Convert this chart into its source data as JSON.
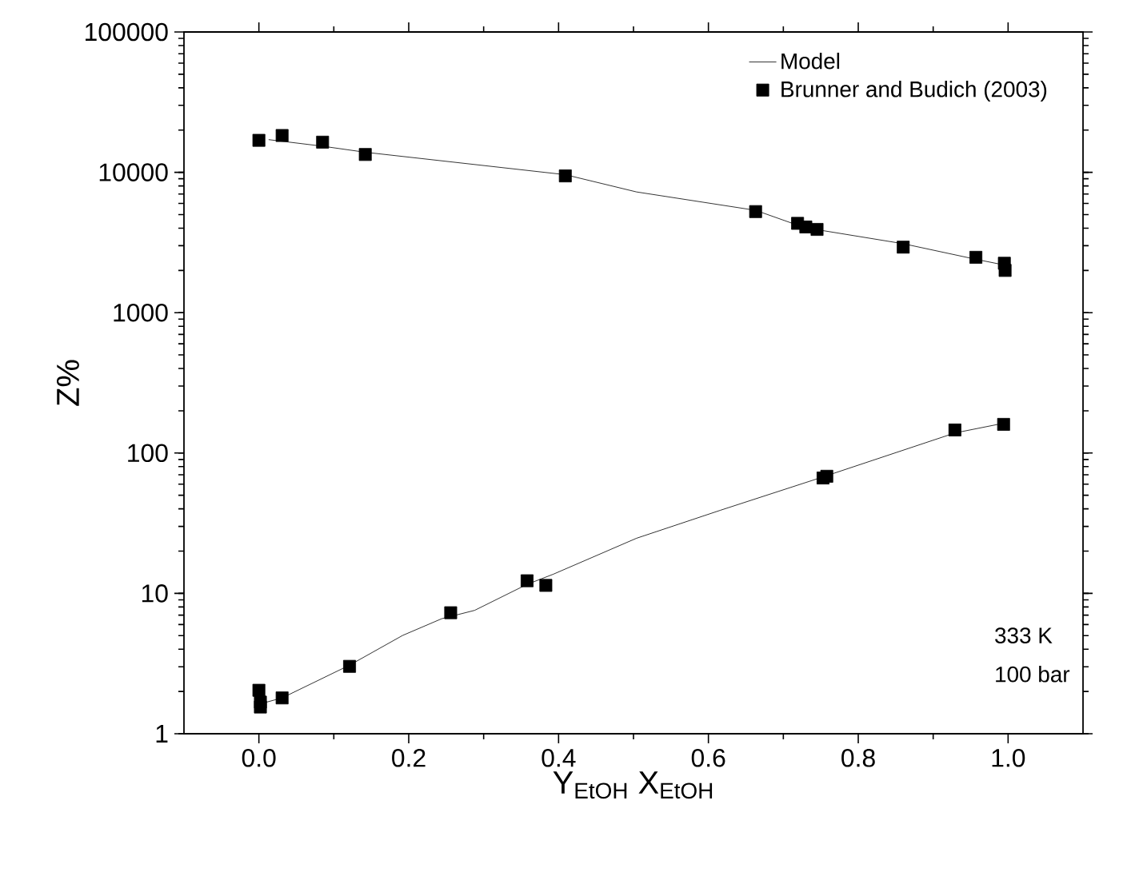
{
  "chart_data": {
    "type": "line",
    "xlabel": "Y$_{EtOH}$ X$_{EtOH}$",
    "ylabel": "Z%",
    "log": "y",
    "xlim": [
      -0.1,
      1.1
    ],
    "xticks": [
      {
        "value": 0,
        "label": "0.0"
      },
      0.2,
      0.4,
      0.6,
      0.8,
      {
        "value": 1,
        "label": "1.0"
      }
    ],
    "ylim": [
      1,
      100000
    ],
    "yticks": [
      1,
      10,
      100,
      1000,
      10000,
      100000
    ],
    "legend": "top right",
    "grid": false,
    "annotations": [
      "333 K",
      "100 bar"
    ],
    "series": [
      {
        "name": "Model",
        "color": "#000000",
        "marker": "none",
        "line_style": "solid",
        "x": [
          0.013,
          0.085,
          0.142,
          0.409,
          0.504,
          0.663,
          0.728,
          0.86,
          0.957,
          0.996,
          null,
          0.005,
          0.031,
          0.121,
          0.192,
          0.244,
          0.288,
          0.358,
          0.393,
          0.504,
          0.616,
          0.753,
          0.929,
          0.994
        ],
        "values": [
          17100,
          15350,
          13900,
          9620,
          7250,
          5360,
          4040,
          3100,
          2400,
          2180,
          null,
          1.65,
          1.8,
          3.08,
          5.02,
          6.6,
          7.57,
          11.6,
          13.7,
          24.7,
          39.1,
          67.6,
          139,
          163
        ]
      },
      {
        "name": "Brunner and Budich (2003)",
        "type": "scatter",
        "color": "#000000",
        "marker": "square",
        "x": [
          0,
          0.031,
          0.085,
          0.142,
          0.409,
          0.663,
          0.719,
          0.73,
          0.745,
          0.86,
          0.957,
          0.995,
          0.996,
          0,
          0.002,
          0.002,
          0.031,
          0.121,
          0.256,
          0.358,
          0.383,
          0.753,
          0.758,
          0.929,
          0.994
        ],
        "values": [
          16900,
          18300,
          16400,
          13400,
          9430,
          5250,
          4330,
          4080,
          3920,
          2930,
          2480,
          2250,
          2000,
          2.04,
          1.68,
          1.55,
          1.8,
          3.02,
          7.28,
          12.3,
          11.4,
          66.4,
          68.3,
          146,
          160
        ]
      }
    ]
  }
}
